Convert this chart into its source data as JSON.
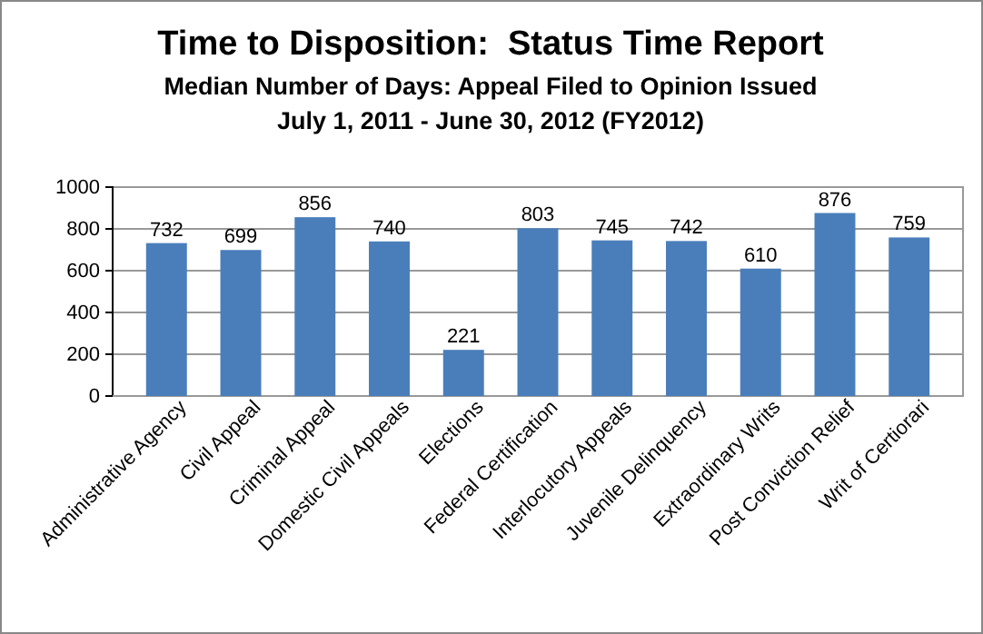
{
  "chart_data": {
    "type": "bar",
    "title": "Time to Disposition:  Status Time Report",
    "subtitle": "Median Number of Days: Appeal Filed to Opinion Issued\nJuly 1, 2011 - June 30, 2012 (FY2012)",
    "categories": [
      "Administrative Agency",
      "Civil Appeal",
      "Criminal Appeal",
      "Domestic Civil Appeals",
      "Elections",
      "Federal Certification",
      "Interlocutory Appeals",
      "Juvenile Delinquency",
      "Extraordinary Writs",
      "Post Conviction Relief",
      "Writ of Certiorari"
    ],
    "values": [
      732,
      699,
      856,
      740,
      221,
      803,
      745,
      742,
      610,
      876,
      759
    ],
    "color": "#4a7ebb",
    "ylim": [
      0,
      1000
    ],
    "yticks": [
      0,
      200,
      400,
      600,
      800,
      1000
    ],
    "grid": "y",
    "data_labels": true
  }
}
